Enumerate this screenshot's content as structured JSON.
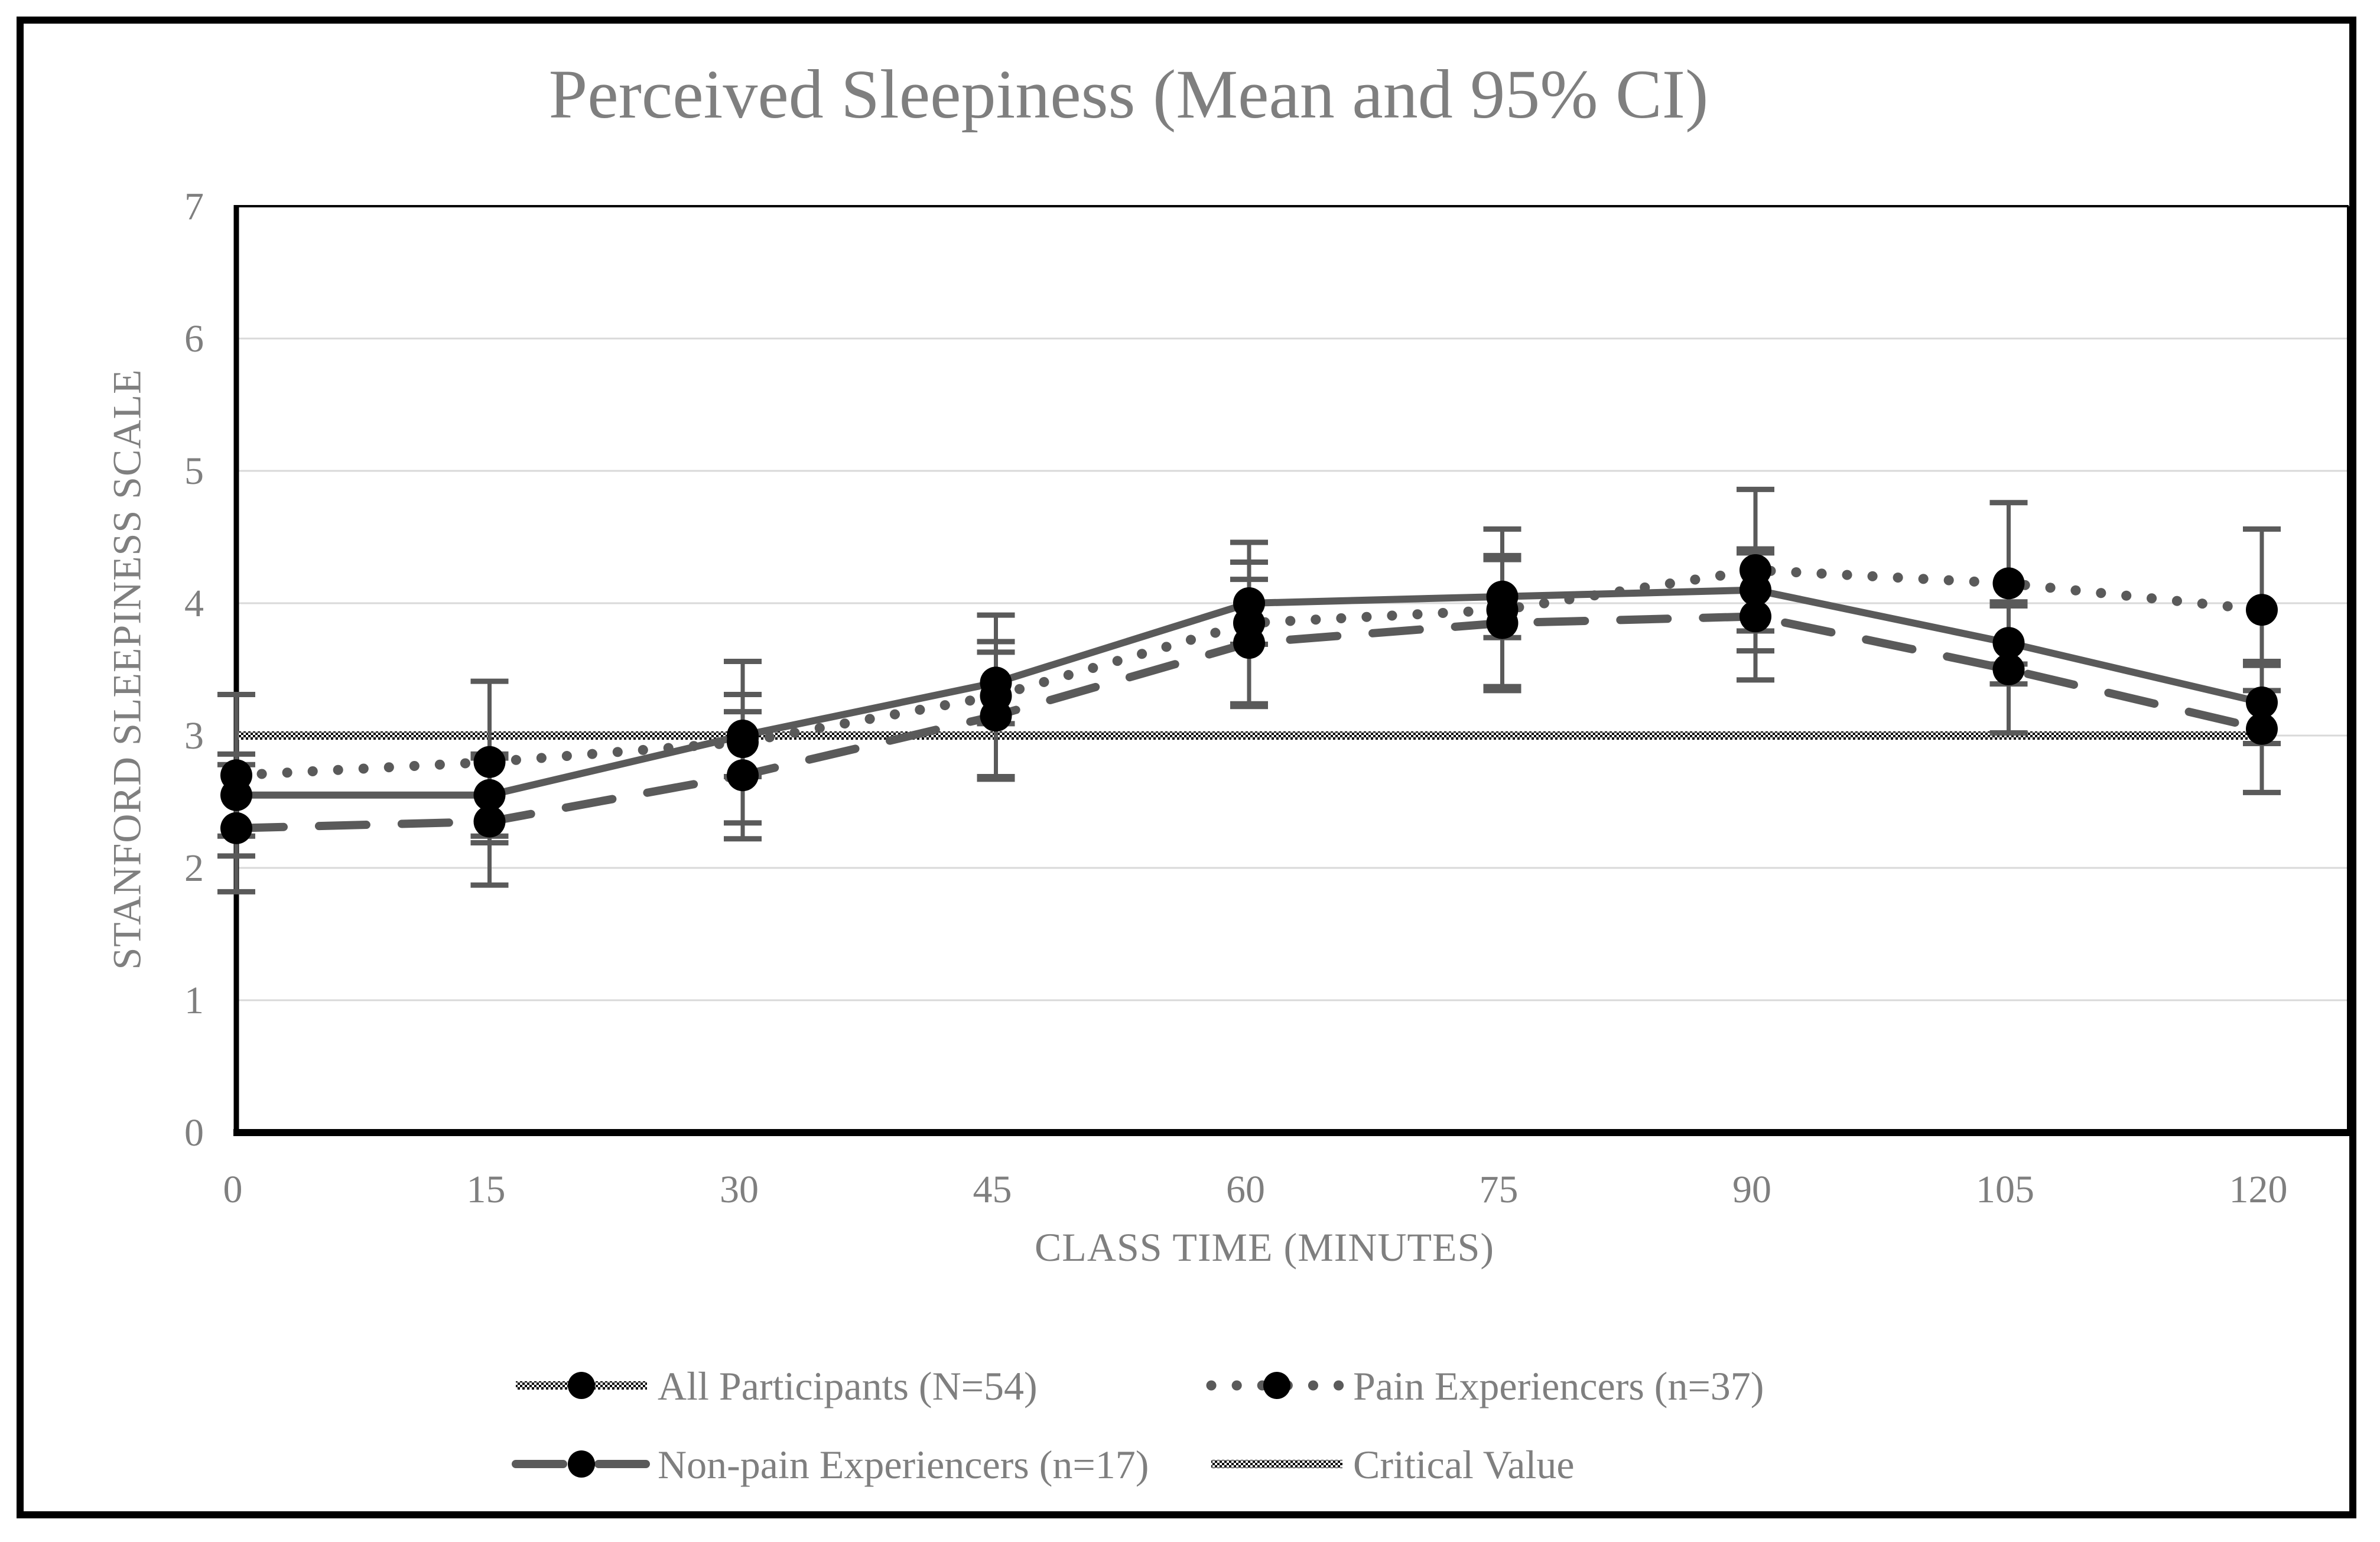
{
  "title": "Perceived Sleepiness (Mean and 95% CI)",
  "chart_data": {
    "type": "line",
    "title": "Perceived Sleepiness (Mean and 95% CI)",
    "xlabel": "CLASS TIME (MINUTES)",
    "ylabel": "STANFORD SLEEPINESS SCALE",
    "x": [
      0,
      15,
      30,
      45,
      60,
      75,
      90,
      105,
      120
    ],
    "ylim": [
      0,
      7
    ],
    "yticks": [
      0,
      1,
      2,
      3,
      4,
      5,
      6,
      7
    ],
    "grid": true,
    "legend_position": "bottom",
    "error_bars": "95% CI",
    "series": [
      {
        "name": "All Participants (N=54)",
        "style": "solid",
        "marker": "circle",
        "values": [
          2.55,
          2.55,
          3.0,
          3.4,
          4.0,
          4.05,
          4.1,
          3.7,
          3.25
        ],
        "ci_half_width": 0.31
      },
      {
        "name": "Pain Experiencers (n=37)",
        "style": "dotted",
        "marker": "circle",
        "values": [
          2.7,
          2.8,
          2.95,
          3.3,
          3.85,
          3.95,
          4.25,
          4.15,
          3.95
        ],
        "ci_half_width": 0.61
      },
      {
        "name": "Non-pain Experiencers (n=17)",
        "style": "dashed",
        "marker": "circle",
        "values": [
          2.3,
          2.35,
          2.7,
          3.15,
          3.7,
          3.85,
          3.9,
          3.5,
          3.05
        ],
        "ci_half_width": 0.48
      },
      {
        "name": "Critical Value",
        "style": "pattern",
        "marker": "none",
        "values": [
          3,
          3,
          3,
          3,
          3,
          3,
          3,
          3,
          3
        ],
        "ci_half_width": 0
      }
    ]
  },
  "colors": {
    "series_line": "#5a5a5a",
    "marker": "#000000",
    "gridline": "#d9d9d9",
    "axis": "#000000",
    "text": "#7f7f7f",
    "error_bar": "#5a5a5a"
  }
}
